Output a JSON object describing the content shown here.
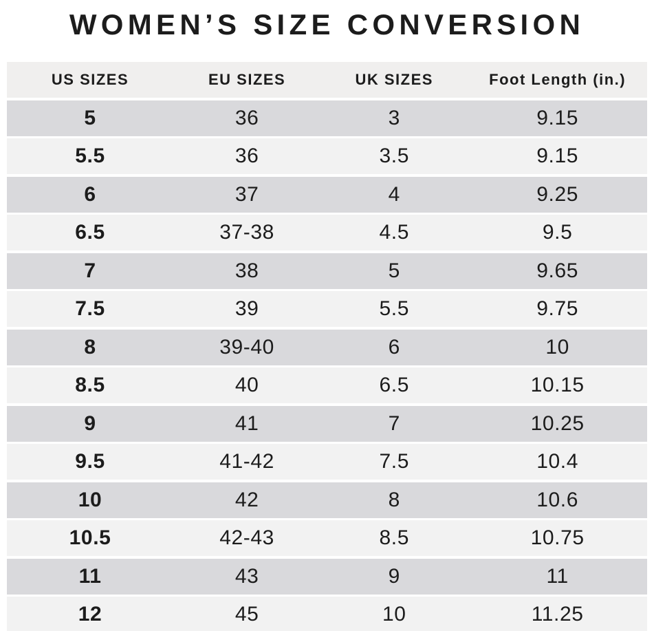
{
  "title": "WOMEN’S SIZE CONVERSION",
  "chart_data": {
    "type": "table",
    "title": "WOMEN’S SIZE CONVERSION",
    "columns": [
      "US SIZES",
      "EU SIZES",
      "UK SIZES",
      "Foot Length (in.)"
    ],
    "rows": [
      [
        "5",
        "36",
        "3",
        "9.15"
      ],
      [
        "5.5",
        "36",
        "3.5",
        "9.15"
      ],
      [
        "6",
        "37",
        "4",
        "9.25"
      ],
      [
        "6.5",
        "37-38",
        "4.5",
        "9.5"
      ],
      [
        "7",
        "38",
        "5",
        "9.65"
      ],
      [
        "7.5",
        "39",
        "5.5",
        "9.75"
      ],
      [
        "8",
        "39-40",
        "6",
        "10"
      ],
      [
        "8.5",
        "40",
        "6.5",
        "10.15"
      ],
      [
        "9",
        "41",
        "7",
        "10.25"
      ],
      [
        "9.5",
        "41-42",
        "7.5",
        "10.4"
      ],
      [
        "10",
        "42",
        "8",
        "10.6"
      ],
      [
        "10.5",
        "42-43",
        "8.5",
        "10.75"
      ],
      [
        "11",
        "43",
        "9",
        "11"
      ],
      [
        "12",
        "45",
        "10",
        "11.25"
      ]
    ],
    "layout": {
      "row_striping": "first data row dark, alternating",
      "legend": "none",
      "grid": "horizontal white separators between rows"
    }
  },
  "colors": {
    "page_bg": "#ffffff",
    "header_bg": "#f0efee",
    "row_dark_bg": "#d9d9dc",
    "row_light_bg": "#f2f2f2",
    "text": "#1c1c1c"
  }
}
